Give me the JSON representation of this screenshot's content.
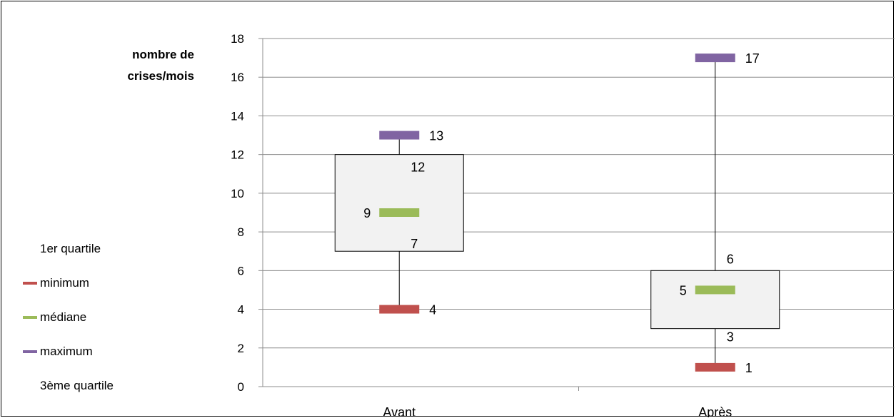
{
  "chart_data": {
    "type": "box",
    "ylabel": "nombre de crises/mois",
    "ylabel_lines": [
      "nombre de",
      "crises/mois"
    ],
    "ylim": [
      0,
      18
    ],
    "yticks": [
      0,
      2,
      4,
      6,
      8,
      10,
      12,
      14,
      16,
      18
    ],
    "grid": true,
    "categories": [
      "Avant",
      "Après"
    ],
    "series": [
      {
        "name": "1er quartile",
        "values": [
          7,
          3
        ],
        "color": "#000000"
      },
      {
        "name": "minimum",
        "values": [
          4,
          1
        ],
        "color": "#c0504d"
      },
      {
        "name": "médiane",
        "values": [
          9,
          5
        ],
        "color": "#9bbb59"
      },
      {
        "name": "maximum",
        "values": [
          13,
          17
        ],
        "color": "#8064a2"
      },
      {
        "name": "3ème quartile",
        "values": [
          12,
          6
        ],
        "color": "#000000"
      }
    ],
    "legend_position": "left"
  }
}
